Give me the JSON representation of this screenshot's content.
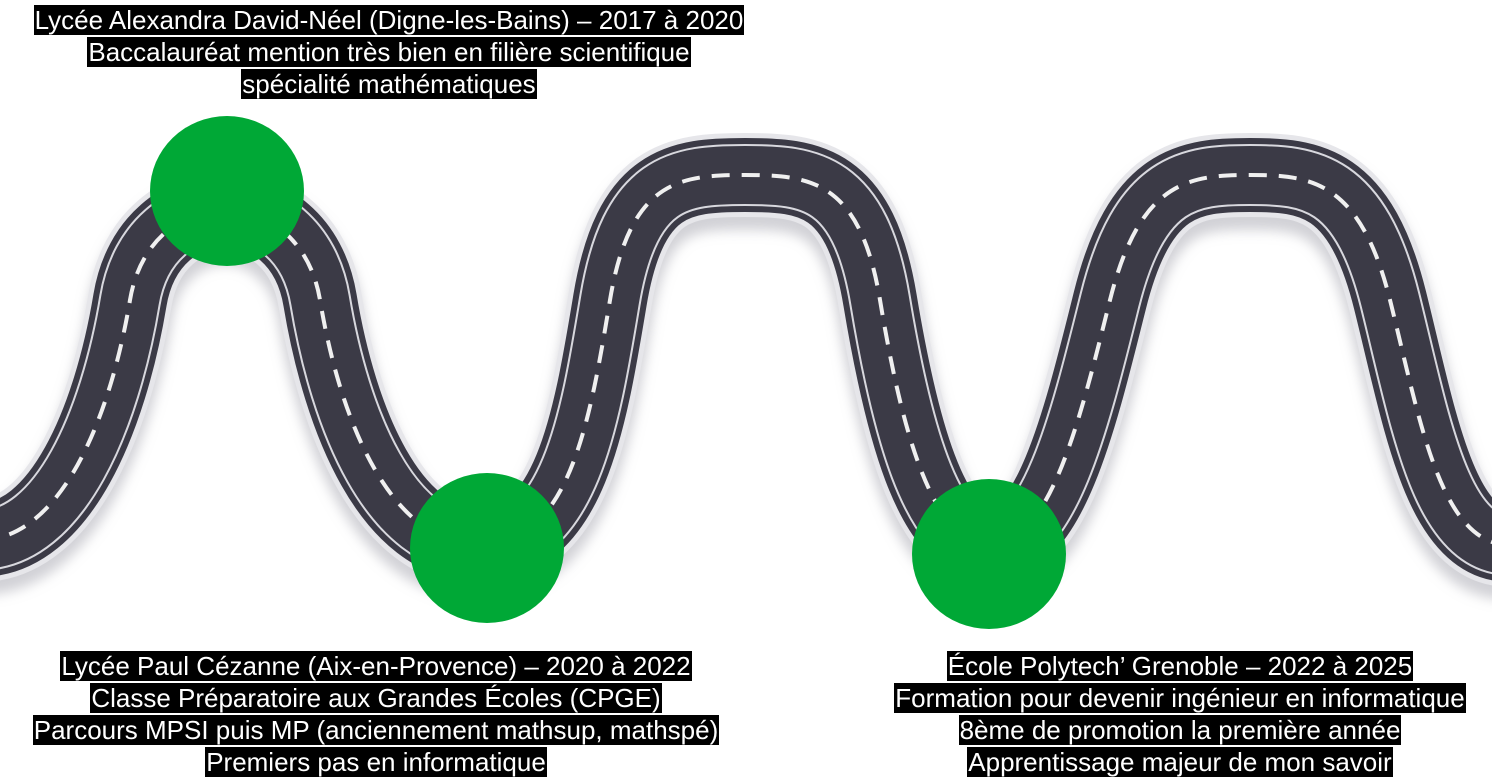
{
  "colors": {
    "road": "#3b3a46",
    "road_edge": "#e6e6ea",
    "dash": "#f0f0f0",
    "milestone": "#00a836",
    "caption_bg": "#000000",
    "caption_text": "#ffffff"
  },
  "milestones": [
    {
      "id": "lycee-adn",
      "lines": [
        "Lycée Alexandra David-Néel (Digne-les-Bains) – 2017 à 2020",
        "Baccalauréat mention très bien en filière scientifique",
        "spécialité mathématiques"
      ]
    },
    {
      "id": "lycee-pc",
      "lines": [
        "Lycée Paul Cézanne (Aix-en-Provence) – 2020 à 2022",
        "Classe Préparatoire aux Grandes Écoles (CPGE)",
        "Parcours MPSI puis MP (anciennement mathsup, mathspé)",
        "Premiers pas en informatique"
      ]
    },
    {
      "id": "polytech",
      "lines": [
        "École Polytech’ Grenoble – 2022 à 2025",
        "Formation pour devenir ingénieur en informatique",
        "8ème de promotion la première année",
        "Apprentissage majeur de mon savoir"
      ]
    }
  ]
}
